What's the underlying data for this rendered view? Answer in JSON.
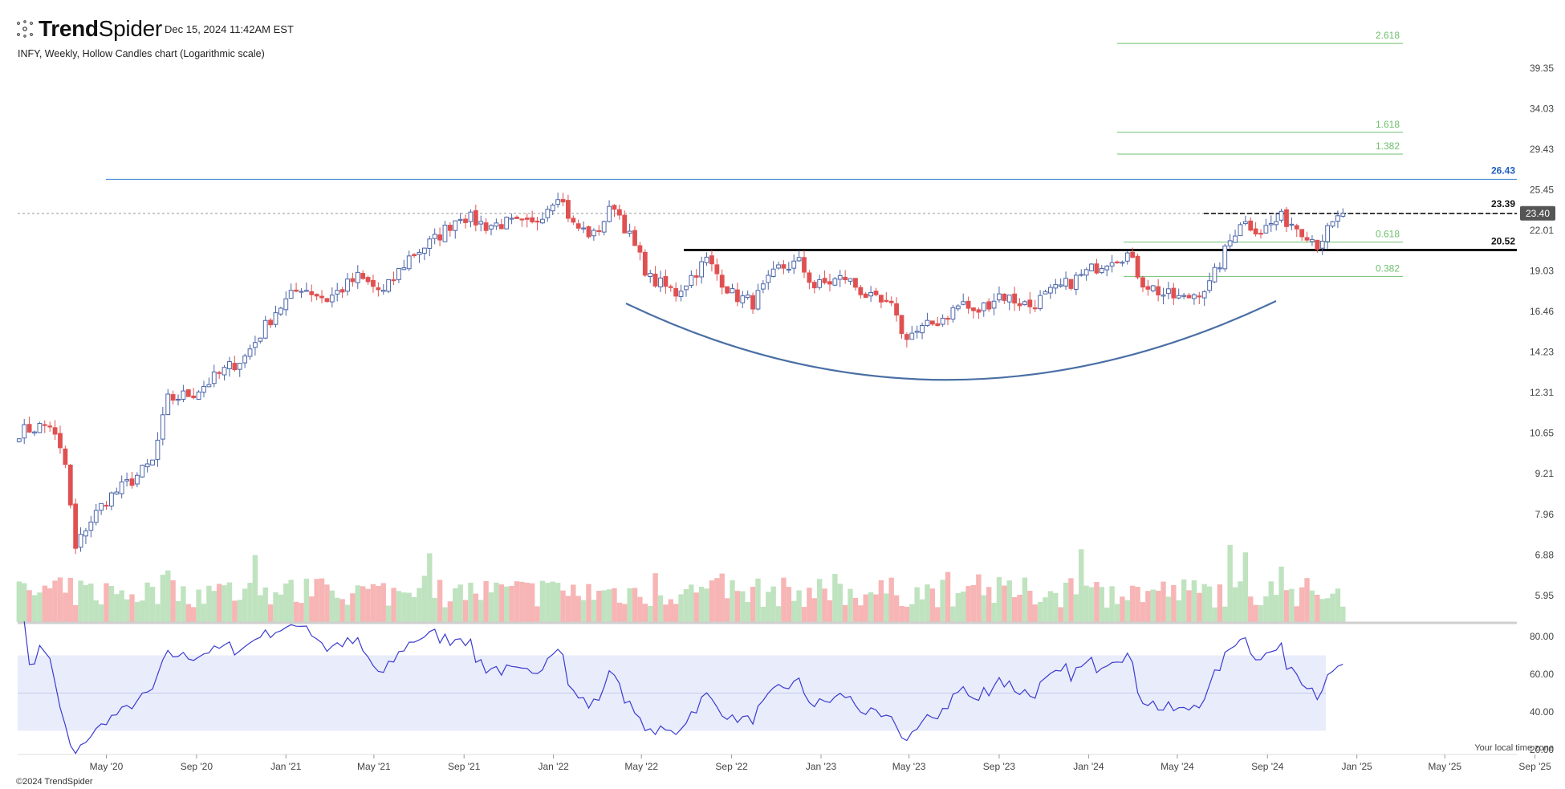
{
  "header": {
    "brand_bold": "Trend",
    "brand_light": "Spider",
    "timestamp": "Dec 15, 2024 11:42AM EST",
    "chart_description": "INFY, Weekly, Hollow Candles chart (Logarithmic scale)"
  },
  "footer": {
    "copyright": "©2024 TrendSpider",
    "timezone_note": "Your local time zone"
  },
  "icons": {
    "logo": "spider-logo-icon"
  },
  "colors": {
    "up": "#4a64a8",
    "down": "#e05050",
    "vol_up": "#bfe3bf",
    "vol_down": "#f7b5b5",
    "resistance_line": "#4c8fd6",
    "fib": "#6fbf6f",
    "rsi_line": "#3b3bcf",
    "rsi_band": "#e9ecfb",
    "curve": "#4a6fa5",
    "price_badge": "#555555"
  },
  "chart_data": {
    "type": "candlestick",
    "symbol": "INFY",
    "interval": "Weekly",
    "scale": "log",
    "last_price": "23.40",
    "y_ticks": [
      "39.35",
      "34.03",
      "29.43",
      "25.45",
      "22.01",
      "19.03",
      "16.46",
      "14.23",
      "12.31",
      "10.65",
      "9.21",
      "7.96",
      "6.88",
      "5.95"
    ],
    "x_ticks": [
      "May '20",
      "Sep '20",
      "Jan '21",
      "May '21",
      "Sep '21",
      "Jan '22",
      "May '22",
      "Sep '22",
      "Jan '23",
      "May '23",
      "Sep '23",
      "Jan '24",
      "May '24",
      "Sep '24",
      "Jan '25",
      "May '25",
      "Sep '25"
    ],
    "x_range": [
      "2020-01-01",
      "2025-10-01"
    ],
    "levels": [
      {
        "value": 26.43,
        "label": "26.43",
        "color": "#1f5fbf",
        "style": "solid-blue"
      },
      {
        "value": 23.39,
        "label": "23.39",
        "color": "#111111",
        "style": "dashed"
      },
      {
        "value": 20.52,
        "label": "20.52",
        "color": "#111111",
        "style": "solid-bold"
      }
    ],
    "fibonacci": [
      {
        "ratio": "2.618",
        "value": 44.0
      },
      {
        "ratio": "1.618",
        "value": 32.0
      },
      {
        "ratio": "1.382",
        "value": 29.6
      },
      {
        "ratio": "0.618",
        "value": 21.6
      },
      {
        "ratio": "0.382",
        "value": 19.1
      }
    ],
    "rsi": {
      "ticks": [
        "80.00",
        "60.00",
        "40.00",
        "20.00"
      ],
      "band": [
        30,
        70
      ],
      "midline": 50
    },
    "anchors": [
      [
        "2020-01-03",
        10.7
      ],
      [
        "2020-02-14",
        11.0
      ],
      [
        "2020-03-06",
        9.5
      ],
      [
        "2020-03-20",
        7.0
      ],
      [
        "2020-04-03",
        7.6
      ],
      [
        "2020-05-01",
        8.4
      ],
      [
        "2020-06-05",
        9.0
      ],
      [
        "2020-07-03",
        9.6
      ],
      [
        "2020-07-24",
        12.0
      ],
      [
        "2020-08-28",
        12.3
      ],
      [
        "2020-10-16",
        13.5
      ],
      [
        "2020-11-06",
        14.0
      ],
      [
        "2020-12-18",
        16.5
      ],
      [
        "2021-01-22",
        18.0
      ],
      [
        "2021-02-26",
        17.2
      ],
      [
        "2021-04-09",
        18.6
      ],
      [
        "2021-05-14",
        17.6
      ],
      [
        "2021-06-18",
        20.0
      ],
      [
        "2021-07-23",
        21.3
      ],
      [
        "2021-08-27",
        23.3
      ],
      [
        "2021-10-01",
        22.4
      ],
      [
        "2021-10-29",
        22.6
      ],
      [
        "2021-12-03",
        22.4
      ],
      [
        "2022-01-07",
        25.2
      ],
      [
        "2022-01-28",
        22.4
      ],
      [
        "2022-02-25",
        21.6
      ],
      [
        "2022-03-25",
        24.2
      ],
      [
        "2022-04-15",
        21.5
      ],
      [
        "2022-05-13",
        18.5
      ],
      [
        "2022-06-17",
        17.6
      ],
      [
        "2022-07-29",
        19.8
      ],
      [
        "2022-09-02",
        17.5
      ],
      [
        "2022-09-30",
        17.0
      ],
      [
        "2022-11-04",
        19.2
      ],
      [
        "2022-12-02",
        19.6
      ],
      [
        "2022-12-23",
        18.0
      ],
      [
        "2023-02-03",
        18.6
      ],
      [
        "2023-03-10",
        17.2
      ],
      [
        "2023-04-14",
        16.5
      ],
      [
        "2023-04-21",
        15.1
      ],
      [
        "2023-05-12",
        15.3
      ],
      [
        "2023-06-09",
        15.9
      ],
      [
        "2023-07-14",
        17.0
      ],
      [
        "2023-07-28",
        16.3
      ],
      [
        "2023-09-01",
        17.5
      ],
      [
        "2023-10-13",
        16.8
      ],
      [
        "2023-11-03",
        17.4
      ],
      [
        "2023-12-15",
        18.5
      ],
      [
        "2024-02-02",
        20.0
      ],
      [
        "2024-02-23",
        20.2
      ],
      [
        "2024-03-15",
        18.3
      ],
      [
        "2024-04-12",
        17.5
      ],
      [
        "2024-05-10",
        17.2
      ],
      [
        "2024-06-14",
        18.1
      ],
      [
        "2024-07-12",
        21.2
      ],
      [
        "2024-07-26",
        22.8
      ],
      [
        "2024-08-23",
        22.0
      ],
      [
        "2024-09-20",
        23.0
      ],
      [
        "2024-10-04",
        22.6
      ],
      [
        "2024-10-25",
        21.8
      ],
      [
        "2024-11-08",
        21.0
      ],
      [
        "2024-11-29",
        22.4
      ],
      [
        "2024-12-13",
        23.4
      ]
    ]
  }
}
